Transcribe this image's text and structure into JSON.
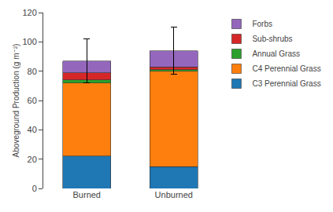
{
  "chart_data": {
    "type": "bar",
    "stacked": true,
    "categories": [
      "Burned",
      "Unburned"
    ],
    "series": [
      {
        "name": "C3 Perennial Grass",
        "values": [
          22,
          15
        ]
      },
      {
        "name": "C4 Perennial Grass",
        "values": [
          50,
          65
        ]
      },
      {
        "name": "Annual Grass",
        "values": [
          2,
          1
        ]
      },
      {
        "name": "Sub-shrubs",
        "values": [
          5,
          2
        ]
      },
      {
        "name": "Forbs",
        "values": [
          8,
          11
        ]
      }
    ],
    "error_bars": [
      15,
      16
    ],
    "ylabel": "Aboveground Production (g m⁻²)",
    "ylim": [
      0,
      120
    ],
    "yticks": [
      0,
      20,
      40,
      60,
      80,
      100,
      120
    ],
    "grid": false,
    "legend": "right"
  }
}
